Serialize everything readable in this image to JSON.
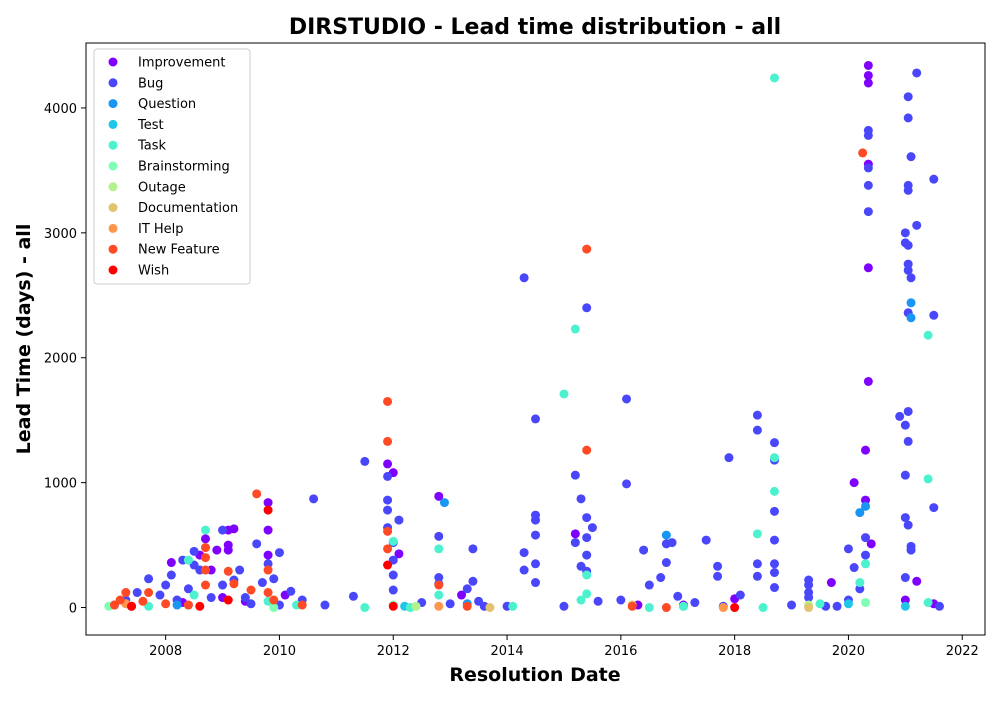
{
  "chart_data": {
    "type": "scatter",
    "title": "DIRSTUDIO - Lead time distribution - all",
    "xlabel": "Resolution Date",
    "ylabel": "Lead Time (days) - all",
    "xlim": [
      2006.6,
      2022.4
    ],
    "ylim": [
      -220,
      4520
    ],
    "x_ticks": [
      2008,
      2010,
      2012,
      2014,
      2016,
      2018,
      2020,
      2022
    ],
    "y_ticks": [
      0,
      1000,
      2000,
      3000,
      4000
    ],
    "grid": false,
    "legend_position": "top-left",
    "series": [
      {
        "name": "Improvement",
        "color": "#8000ff",
        "points": [
          [
            2008.1,
            360
          ],
          [
            2008.6,
            420
          ],
          [
            2008.7,
            550
          ],
          [
            2008.8,
            300
          ],
          [
            2008.9,
            460
          ],
          [
            2009.0,
            80
          ],
          [
            2009.1,
            620
          ],
          [
            2009.1,
            500
          ],
          [
            2009.1,
            460
          ],
          [
            2009.2,
            630
          ],
          [
            2009.4,
            50
          ],
          [
            2009.8,
            840
          ],
          [
            2009.8,
            620
          ],
          [
            2009.8,
            420
          ],
          [
            2010.1,
            100
          ],
          [
            2011.9,
            1150
          ],
          [
            2012.0,
            1080
          ],
          [
            2012.1,
            430
          ],
          [
            2012.8,
            890
          ],
          [
            2013.2,
            100
          ],
          [
            2015.2,
            590
          ],
          [
            2019.7,
            200
          ],
          [
            2020.1,
            1000
          ],
          [
            2020.3,
            860
          ],
          [
            2020.3,
            1260
          ],
          [
            2020.4,
            510
          ],
          [
            2020.35,
            1810
          ],
          [
            2020.35,
            2720
          ],
          [
            2020.35,
            3550
          ],
          [
            2020.35,
            4200
          ],
          [
            2020.35,
            4260
          ],
          [
            2020.35,
            4340
          ],
          [
            2021.0,
            60
          ],
          [
            2021.2,
            210
          ],
          [
            2021.5,
            30
          ],
          [
            2017.1,
            20
          ],
          [
            2018.0,
            70
          ],
          [
            2016.3,
            20
          ],
          [
            2008.3,
            40
          ],
          [
            2007.4,
            10
          ]
        ]
      },
      {
        "name": "Bug",
        "color": "#4a47fb",
        "points": [
          [
            2007.1,
            20
          ],
          [
            2007.3,
            60
          ],
          [
            2007.5,
            120
          ],
          [
            2007.7,
            230
          ],
          [
            2007.9,
            100
          ],
          [
            2008.0,
            180
          ],
          [
            2008.1,
            260
          ],
          [
            2008.2,
            60
          ],
          [
            2008.3,
            380
          ],
          [
            2008.4,
            150
          ],
          [
            2008.5,
            450
          ],
          [
            2008.5,
            340
          ],
          [
            2008.6,
            300
          ],
          [
            2008.8,
            80
          ],
          [
            2009.0,
            180
          ],
          [
            2009.2,
            220
          ],
          [
            2009.3,
            300
          ],
          [
            2009.4,
            80
          ],
          [
            2009.5,
            30
          ],
          [
            2009.6,
            510
          ],
          [
            2009.7,
            200
          ],
          [
            2009.8,
            350
          ],
          [
            2009.9,
            230
          ],
          [
            2010.0,
            440
          ],
          [
            2010.2,
            130
          ],
          [
            2010.4,
            60
          ],
          [
            2010.6,
            870
          ],
          [
            2010.8,
            20
          ],
          [
            2011.3,
            90
          ],
          [
            2011.5,
            1170
          ],
          [
            2011.9,
            1050
          ],
          [
            2011.9,
            860
          ],
          [
            2011.9,
            780
          ],
          [
            2011.9,
            640
          ],
          [
            2012.0,
            520
          ],
          [
            2012.0,
            380
          ],
          [
            2012.0,
            260
          ],
          [
            2012.0,
            140
          ],
          [
            2012.1,
            700
          ],
          [
            2012.5,
            40
          ],
          [
            2012.8,
            570
          ],
          [
            2012.8,
            240
          ],
          [
            2012.8,
            190
          ],
          [
            2013.0,
            30
          ],
          [
            2013.3,
            150
          ],
          [
            2013.4,
            470
          ],
          [
            2013.4,
            210
          ],
          [
            2013.5,
            50
          ],
          [
            2014.3,
            2640
          ],
          [
            2014.3,
            440
          ],
          [
            2014.3,
            300
          ],
          [
            2014.5,
            1510
          ],
          [
            2014.5,
            740
          ],
          [
            2014.5,
            700
          ],
          [
            2014.5,
            580
          ],
          [
            2014.5,
            350
          ],
          [
            2014.5,
            200
          ],
          [
            2015.0,
            10
          ],
          [
            2015.2,
            1060
          ],
          [
            2015.2,
            520
          ],
          [
            2015.3,
            870
          ],
          [
            2015.3,
            330
          ],
          [
            2015.4,
            2400
          ],
          [
            2015.4,
            720
          ],
          [
            2015.4,
            560
          ],
          [
            2015.4,
            420
          ],
          [
            2015.4,
            290
          ],
          [
            2015.5,
            640
          ],
          [
            2015.6,
            50
          ],
          [
            2016.0,
            60
          ],
          [
            2016.1,
            1670
          ],
          [
            2016.1,
            990
          ],
          [
            2016.4,
            460
          ],
          [
            2016.5,
            180
          ],
          [
            2016.7,
            240
          ],
          [
            2016.8,
            510
          ],
          [
            2016.8,
            360
          ],
          [
            2016.9,
            520
          ],
          [
            2017.0,
            90
          ],
          [
            2017.3,
            40
          ],
          [
            2017.5,
            540
          ],
          [
            2017.7,
            330
          ],
          [
            2017.7,
            250
          ],
          [
            2017.9,
            1200
          ],
          [
            2018.1,
            100
          ],
          [
            2018.4,
            1540
          ],
          [
            2018.4,
            1420
          ],
          [
            2018.4,
            350
          ],
          [
            2018.4,
            250
          ],
          [
            2018.7,
            1320
          ],
          [
            2018.7,
            1180
          ],
          [
            2018.7,
            770
          ],
          [
            2018.7,
            540
          ],
          [
            2018.7,
            350
          ],
          [
            2018.7,
            280
          ],
          [
            2018.7,
            160
          ],
          [
            2019.0,
            20
          ],
          [
            2019.3,
            220
          ],
          [
            2019.3,
            180
          ],
          [
            2019.3,
            120
          ],
          [
            2019.3,
            80
          ],
          [
            2019.6,
            10
          ],
          [
            2020.0,
            470
          ],
          [
            2020.1,
            320
          ],
          [
            2020.2,
            150
          ],
          [
            2020.3,
            560
          ],
          [
            2020.3,
            420
          ],
          [
            2020.35,
            3170
          ],
          [
            2020.35,
            3380
          ],
          [
            2020.35,
            3520
          ],
          [
            2020.35,
            3780
          ],
          [
            2020.35,
            3820
          ],
          [
            2020.0,
            60
          ],
          [
            2020.9,
            1530
          ],
          [
            2021.0,
            3000
          ],
          [
            2021.0,
            2920
          ],
          [
            2021.0,
            1460
          ],
          [
            2021.0,
            1060
          ],
          [
            2021.0,
            720
          ],
          [
            2021.0,
            240
          ],
          [
            2021.05,
            4090
          ],
          [
            2021.05,
            3920
          ],
          [
            2021.05,
            3380
          ],
          [
            2021.05,
            3340
          ],
          [
            2021.05,
            2900
          ],
          [
            2021.05,
            2750
          ],
          [
            2021.05,
            2700
          ],
          [
            2021.05,
            2360
          ],
          [
            2021.05,
            1570
          ],
          [
            2021.05,
            1330
          ],
          [
            2021.05,
            660
          ],
          [
            2021.1,
            3610
          ],
          [
            2021.1,
            2640
          ],
          [
            2021.1,
            490
          ],
          [
            2021.1,
            460
          ],
          [
            2021.2,
            4280
          ],
          [
            2021.2,
            3060
          ],
          [
            2021.5,
            3430
          ],
          [
            2021.5,
            2340
          ],
          [
            2021.5,
            800
          ],
          [
            2021.6,
            10
          ],
          [
            2009.0,
            620
          ],
          [
            2010.0,
            20
          ],
          [
            2013.6,
            10
          ],
          [
            2014.0,
            10
          ],
          [
            2017.8,
            10
          ],
          [
            2019.8,
            10
          ]
        ]
      },
      {
        "name": "Question",
        "color": "#1996f3",
        "points": [
          [
            2012.9,
            840
          ],
          [
            2016.8,
            580
          ],
          [
            2020.2,
            760
          ],
          [
            2020.3,
            810
          ],
          [
            2021.1,
            2440
          ],
          [
            2021.1,
            2320
          ],
          [
            2013.3,
            30
          ],
          [
            2008.2,
            20
          ]
        ]
      },
      {
        "name": "Test",
        "color": "#20c5e8",
        "points": [
          [
            2008.4,
            20
          ],
          [
            2012.2,
            10
          ],
          [
            2017.1,
            10
          ],
          [
            2020.0,
            30
          ],
          [
            2021.0,
            10
          ]
        ]
      },
      {
        "name": "Task",
        "color": "#4cf2ce",
        "points": [
          [
            2008.4,
            380
          ],
          [
            2008.5,
            100
          ],
          [
            2008.7,
            620
          ],
          [
            2009.8,
            50
          ],
          [
            2011.5,
            0
          ],
          [
            2012.0,
            530
          ],
          [
            2012.8,
            470
          ],
          [
            2012.8,
            100
          ],
          [
            2015.0,
            1710
          ],
          [
            2015.2,
            2230
          ],
          [
            2015.3,
            60
          ],
          [
            2015.4,
            110
          ],
          [
            2015.4,
            260
          ],
          [
            2017.1,
            10
          ],
          [
            2018.4,
            590
          ],
          [
            2018.7,
            4240
          ],
          [
            2018.7,
            1200
          ],
          [
            2018.7,
            930
          ],
          [
            2019.5,
            30
          ],
          [
            2020.2,
            200
          ],
          [
            2020.3,
            350
          ],
          [
            2021.4,
            2180
          ],
          [
            2021.4,
            1030
          ],
          [
            2021.4,
            40
          ],
          [
            2007.7,
            10
          ],
          [
            2010.3,
            20
          ],
          [
            2012.3,
            0
          ],
          [
            2014.1,
            10
          ],
          [
            2016.5,
            0
          ],
          [
            2018.5,
            0
          ]
        ]
      },
      {
        "name": "Brainstorming",
        "color": "#80ffb4",
        "points": [
          [
            2007.0,
            10
          ],
          [
            2009.9,
            0
          ],
          [
            2012.0,
            20
          ],
          [
            2020.3,
            40
          ]
        ]
      },
      {
        "name": "Outage",
        "color": "#b4f28d",
        "points": [
          [
            2012.4,
            10
          ],
          [
            2019.3,
            20
          ]
        ]
      },
      {
        "name": "Documentation",
        "color": "#e2c46f",
        "points": [
          [
            2013.7,
            0
          ],
          [
            2016.2,
            20
          ],
          [
            2019.3,
            0
          ]
        ]
      },
      {
        "name": "IT Help",
        "color": "#ff964d",
        "points": [
          [
            2007.3,
            30
          ],
          [
            2012.8,
            10
          ],
          [
            2017.8,
            0
          ]
        ]
      },
      {
        "name": "New Feature",
        "color": "#ff4a25",
        "points": [
          [
            2007.1,
            20
          ],
          [
            2007.2,
            60
          ],
          [
            2007.3,
            120
          ],
          [
            2007.6,
            50
          ],
          [
            2007.7,
            120
          ],
          [
            2008.0,
            30
          ],
          [
            2008.4,
            20
          ],
          [
            2008.7,
            480
          ],
          [
            2008.7,
            400
          ],
          [
            2008.7,
            300
          ],
          [
            2008.7,
            180
          ],
          [
            2009.1,
            290
          ],
          [
            2009.2,
            190
          ],
          [
            2009.5,
            140
          ],
          [
            2009.6,
            910
          ],
          [
            2009.8,
            300
          ],
          [
            2009.8,
            120
          ],
          [
            2009.9,
            60
          ],
          [
            2011.9,
            1650
          ],
          [
            2011.9,
            1330
          ],
          [
            2011.9,
            610
          ],
          [
            2011.9,
            470
          ],
          [
            2012.8,
            180
          ],
          [
            2013.3,
            10
          ],
          [
            2015.4,
            2870
          ],
          [
            2015.4,
            1260
          ],
          [
            2016.2,
            10
          ],
          [
            2016.8,
            0
          ],
          [
            2020.25,
            3640
          ],
          [
            2010.4,
            20
          ]
        ]
      },
      {
        "name": "Wish",
        "color": "#ff0000",
        "points": [
          [
            2007.4,
            10
          ],
          [
            2008.6,
            10
          ],
          [
            2009.1,
            60
          ],
          [
            2009.8,
            780
          ],
          [
            2011.9,
            340
          ],
          [
            2012.0,
            10
          ],
          [
            2018.0,
            0
          ]
        ]
      }
    ]
  }
}
